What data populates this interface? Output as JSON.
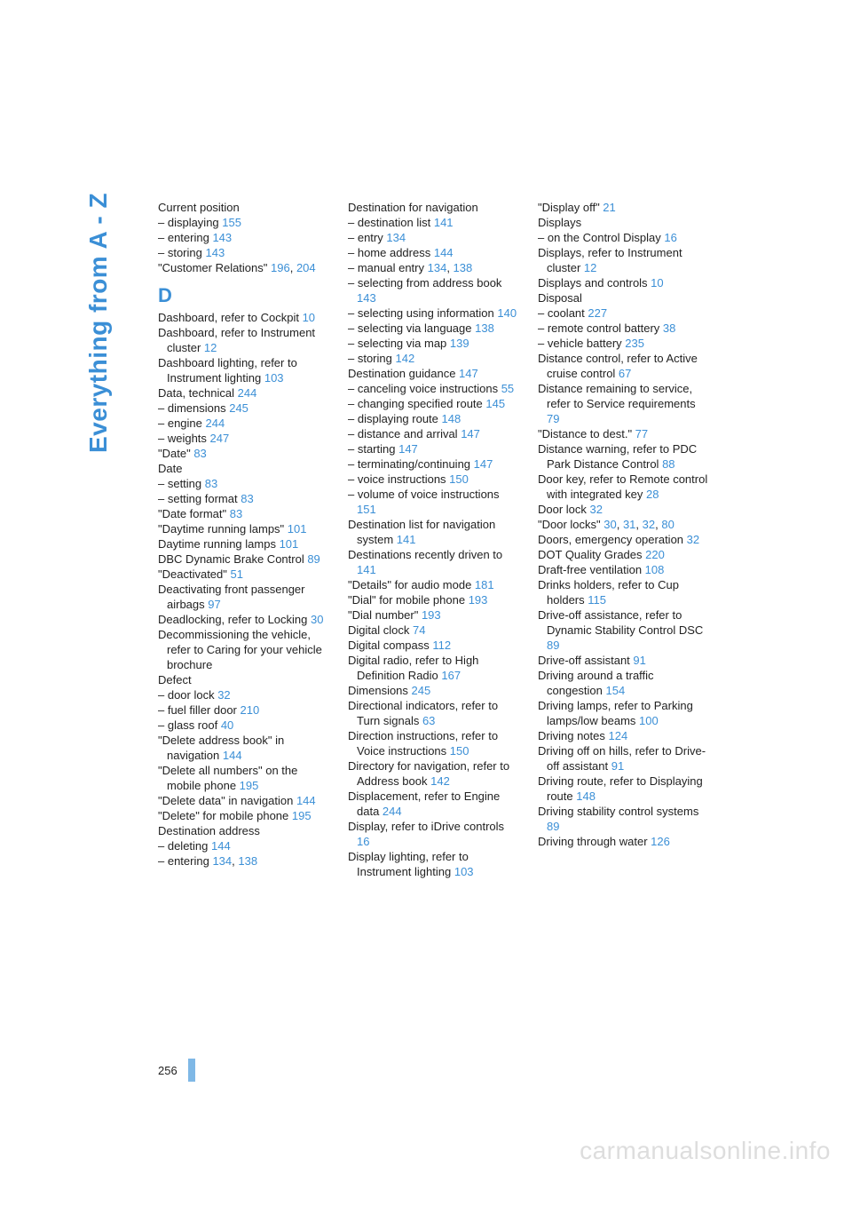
{
  "side_label": "Everything from A - Z",
  "page_number": "256",
  "watermark": "carmanualsonline.info",
  "link_color": "#3b8fd6",
  "text_color": "#222222",
  "columns": [
    [
      {
        "type": "entry",
        "main": "Current position",
        "subs": [
          {
            "t": "– displaying ",
            "r": "155"
          },
          {
            "t": "– entering ",
            "r": "143"
          },
          {
            "t": "– storing ",
            "r": "143"
          }
        ]
      },
      {
        "type": "entry",
        "main_parts": [
          {
            "t": "\"Customer Relations\" "
          },
          {
            "r": "196"
          },
          {
            "t": ", "
          },
          {
            "r": "204"
          }
        ]
      },
      {
        "type": "section",
        "label": "D"
      },
      {
        "type": "entry",
        "main_parts": [
          {
            "t": "Dashboard, refer to Cockpit "
          },
          {
            "r": "10"
          }
        ]
      },
      {
        "type": "entry",
        "main_parts": [
          {
            "t": "Dashboard, refer to Instrument cluster "
          },
          {
            "r": "12"
          }
        ]
      },
      {
        "type": "entry",
        "main_parts": [
          {
            "t": "Dashboard lighting, refer to Instrument lighting "
          },
          {
            "r": "103"
          }
        ]
      },
      {
        "type": "entry",
        "main_parts": [
          {
            "t": "Data, technical "
          },
          {
            "r": "244"
          }
        ],
        "subs": [
          {
            "t": "– dimensions ",
            "r": "245"
          },
          {
            "t": "– engine ",
            "r": "244"
          },
          {
            "t": "– weights ",
            "r": "247"
          }
        ]
      },
      {
        "type": "entry",
        "main_parts": [
          {
            "t": "\"Date\" "
          },
          {
            "r": "83"
          }
        ]
      },
      {
        "type": "entry",
        "main": "Date",
        "subs": [
          {
            "t": "– setting ",
            "r": "83"
          },
          {
            "t": "– setting format ",
            "r": "83"
          }
        ]
      },
      {
        "type": "entry",
        "main_parts": [
          {
            "t": "\"Date format\" "
          },
          {
            "r": "83"
          }
        ]
      },
      {
        "type": "entry",
        "main_parts": [
          {
            "t": "\"Daytime running lamps\" "
          },
          {
            "r": "101"
          }
        ]
      },
      {
        "type": "entry",
        "main_parts": [
          {
            "t": "Daytime running lamps "
          },
          {
            "r": "101"
          }
        ]
      },
      {
        "type": "entry",
        "main_parts": [
          {
            "t": "DBC Dynamic Brake Control "
          },
          {
            "r": "89"
          }
        ]
      },
      {
        "type": "entry",
        "main_parts": [
          {
            "t": "\"Deactivated\" "
          },
          {
            "r": "51"
          }
        ]
      },
      {
        "type": "entry",
        "main_parts": [
          {
            "t": "Deactivating front passenger airbags "
          },
          {
            "r": "97"
          }
        ]
      },
      {
        "type": "entry",
        "main_parts": [
          {
            "t": "Deadlocking, refer to Locking "
          },
          {
            "r": "30"
          }
        ]
      },
      {
        "type": "entry",
        "main": "Decommissioning the vehicle, refer to Caring for your vehicle brochure"
      },
      {
        "type": "entry",
        "main": "Defect",
        "subs": [
          {
            "t": "– door lock ",
            "r": "32"
          },
          {
            "t": "– fuel filler door ",
            "r": "210"
          },
          {
            "t": "– glass roof ",
            "r": "40"
          }
        ]
      },
      {
        "type": "entry",
        "main_parts": [
          {
            "t": "\"Delete address book\" in navigation "
          },
          {
            "r": "144"
          }
        ]
      },
      {
        "type": "entry",
        "main_parts": [
          {
            "t": "\"Delete all numbers\" on the mobile phone "
          },
          {
            "r": "195"
          }
        ]
      },
      {
        "type": "entry",
        "main_parts": [
          {
            "t": "\"Delete data\" in navigation "
          },
          {
            "r": "144"
          }
        ]
      },
      {
        "type": "entry",
        "main_parts": [
          {
            "t": "\"Delete\" for mobile phone "
          },
          {
            "r": "195"
          }
        ]
      }
    ],
    [
      {
        "type": "entry",
        "main": "Destination address",
        "subs": [
          {
            "t": "– deleting ",
            "r": "144"
          },
          {
            "parts": [
              {
                "t": "– entering "
              },
              {
                "r": "134"
              },
              {
                "t": ", "
              },
              {
                "r": "138"
              }
            ]
          }
        ]
      },
      {
        "type": "entry",
        "main": "Destination for navigation",
        "subs": [
          {
            "t": "– destination list ",
            "r": "141"
          },
          {
            "t": "– entry ",
            "r": "134"
          },
          {
            "t": "– home address ",
            "r": "144"
          },
          {
            "parts": [
              {
                "t": "– manual entry "
              },
              {
                "r": "134"
              },
              {
                "t": ", "
              },
              {
                "r": "138"
              }
            ]
          },
          {
            "t": "– selecting from address book ",
            "r": "143"
          },
          {
            "t": "– selecting using information ",
            "r": "140"
          },
          {
            "t": "– selecting via language ",
            "r": "138"
          },
          {
            "t": "– selecting via map ",
            "r": "139"
          },
          {
            "t": "– storing ",
            "r": "142"
          }
        ]
      },
      {
        "type": "entry",
        "main_parts": [
          {
            "t": "Destination guidance "
          },
          {
            "r": "147"
          }
        ],
        "subs": [
          {
            "t": "– canceling voice instructions ",
            "r": "55"
          },
          {
            "t": "– changing specified route ",
            "r": "145"
          },
          {
            "t": "– displaying route ",
            "r": "148"
          },
          {
            "t": "– distance and arrival ",
            "r": "147"
          },
          {
            "t": "– starting ",
            "r": "147"
          },
          {
            "t": "– terminating/continuing ",
            "r": "147"
          },
          {
            "t": "– voice instructions ",
            "r": "150"
          },
          {
            "t": "– volume of voice instructions ",
            "r": "151"
          }
        ]
      },
      {
        "type": "entry",
        "main_parts": [
          {
            "t": "Destination list for navigation system "
          },
          {
            "r": "141"
          }
        ]
      },
      {
        "type": "entry",
        "main_parts": [
          {
            "t": "Destinations recently driven to "
          },
          {
            "r": "141"
          }
        ]
      },
      {
        "type": "entry",
        "main_parts": [
          {
            "t": "\"Details\" for audio mode "
          },
          {
            "r": "181"
          }
        ]
      },
      {
        "type": "entry",
        "main_parts": [
          {
            "t": "\"Dial\" for mobile phone "
          },
          {
            "r": "193"
          }
        ]
      },
      {
        "type": "entry",
        "main_parts": [
          {
            "t": "\"Dial number\" "
          },
          {
            "r": "193"
          }
        ]
      },
      {
        "type": "entry",
        "main_parts": [
          {
            "t": "Digital clock "
          },
          {
            "r": "74"
          }
        ]
      },
      {
        "type": "entry",
        "main_parts": [
          {
            "t": "Digital compass "
          },
          {
            "r": "112"
          }
        ]
      },
      {
        "type": "entry",
        "main_parts": [
          {
            "t": "Digital radio, refer to High Definition Radio "
          },
          {
            "r": "167"
          }
        ]
      },
      {
        "type": "entry",
        "main_parts": [
          {
            "t": "Dimensions "
          },
          {
            "r": "245"
          }
        ]
      },
      {
        "type": "entry",
        "main_parts": [
          {
            "t": "Directional indicators, refer to Turn signals "
          },
          {
            "r": "63"
          }
        ]
      },
      {
        "type": "entry",
        "main_parts": [
          {
            "t": "Direction instructions, refer to Voice instructions "
          },
          {
            "r": "150"
          }
        ]
      },
      {
        "type": "entry",
        "main_parts": [
          {
            "t": "Directory for navigation, refer to Address book "
          },
          {
            "r": "142"
          }
        ]
      },
      {
        "type": "entry",
        "main_parts": [
          {
            "t": "Displacement, refer to Engine data "
          },
          {
            "r": "244"
          }
        ]
      },
      {
        "type": "entry",
        "main_parts": [
          {
            "t": "Display, refer to iDrive controls "
          },
          {
            "r": "16"
          }
        ]
      }
    ],
    [
      {
        "type": "entry",
        "main_parts": [
          {
            "t": "Display lighting, refer to Instrument lighting "
          },
          {
            "r": "103"
          }
        ]
      },
      {
        "type": "entry",
        "main_parts": [
          {
            "t": "\"Display off\" "
          },
          {
            "r": "21"
          }
        ]
      },
      {
        "type": "entry",
        "main": "Displays",
        "subs": [
          {
            "t": "– on the Control Display ",
            "r": "16"
          }
        ]
      },
      {
        "type": "entry",
        "main_parts": [
          {
            "t": "Displays, refer to Instrument cluster "
          },
          {
            "r": "12"
          }
        ]
      },
      {
        "type": "entry",
        "main_parts": [
          {
            "t": "Displays and controls "
          },
          {
            "r": "10"
          }
        ]
      },
      {
        "type": "entry",
        "main": "Disposal",
        "subs": [
          {
            "t": "– coolant ",
            "r": "227"
          },
          {
            "t": "– remote control battery ",
            "r": "38"
          },
          {
            "t": "– vehicle battery ",
            "r": "235"
          }
        ]
      },
      {
        "type": "entry",
        "main_parts": [
          {
            "t": "Distance control, refer to Active cruise control "
          },
          {
            "r": "67"
          }
        ]
      },
      {
        "type": "entry",
        "main_parts": [
          {
            "t": "Distance remaining to service, refer to Service requirements "
          },
          {
            "r": "79"
          }
        ]
      },
      {
        "type": "entry",
        "main_parts": [
          {
            "t": "\"Distance to dest.\" "
          },
          {
            "r": "77"
          }
        ]
      },
      {
        "type": "entry",
        "main_parts": [
          {
            "t": "Distance warning, refer to PDC Park Distance Control "
          },
          {
            "r": "88"
          }
        ]
      },
      {
        "type": "entry",
        "main_parts": [
          {
            "t": "Door key, refer to Remote control with integrated key "
          },
          {
            "r": "28"
          }
        ]
      },
      {
        "type": "entry",
        "main_parts": [
          {
            "t": "Door lock "
          },
          {
            "r": "32"
          }
        ]
      },
      {
        "type": "entry",
        "main_parts": [
          {
            "t": "\"Door locks\" "
          },
          {
            "r": "30"
          },
          {
            "t": ", "
          },
          {
            "r": "31"
          },
          {
            "t": ", "
          },
          {
            "r": "32"
          },
          {
            "t": ", "
          },
          {
            "r": "80"
          }
        ]
      },
      {
        "type": "entry",
        "main_parts": [
          {
            "t": "Doors, emergency operation "
          },
          {
            "r": "32"
          }
        ]
      },
      {
        "type": "entry",
        "main_parts": [
          {
            "t": "DOT Quality Grades "
          },
          {
            "r": "220"
          }
        ]
      },
      {
        "type": "entry",
        "main_parts": [
          {
            "t": "Draft-free ventilation "
          },
          {
            "r": "108"
          }
        ]
      },
      {
        "type": "entry",
        "main_parts": [
          {
            "t": "Drinks holders, refer to Cup holders "
          },
          {
            "r": "115"
          }
        ]
      },
      {
        "type": "entry",
        "main_parts": [
          {
            "t": "Drive-off assistance, refer to Dynamic Stability Control DSC "
          },
          {
            "r": "89"
          }
        ]
      },
      {
        "type": "entry",
        "main_parts": [
          {
            "t": "Drive-off assistant "
          },
          {
            "r": "91"
          }
        ]
      },
      {
        "type": "entry",
        "main_parts": [
          {
            "t": "Driving around a traffic congestion "
          },
          {
            "r": "154"
          }
        ]
      },
      {
        "type": "entry",
        "main_parts": [
          {
            "t": "Driving lamps, refer to Parking lamps/low beams "
          },
          {
            "r": "100"
          }
        ]
      },
      {
        "type": "entry",
        "main_parts": [
          {
            "t": "Driving notes "
          },
          {
            "r": "124"
          }
        ]
      },
      {
        "type": "entry",
        "main_parts": [
          {
            "t": "Driving off on hills, refer to Drive-off assistant "
          },
          {
            "r": "91"
          }
        ]
      },
      {
        "type": "entry",
        "main_parts": [
          {
            "t": "Driving route, refer to Displaying route "
          },
          {
            "r": "148"
          }
        ]
      },
      {
        "type": "entry",
        "main_parts": [
          {
            "t": "Driving stability control systems "
          },
          {
            "r": "89"
          }
        ]
      },
      {
        "type": "entry",
        "main_parts": [
          {
            "t": "Driving through water "
          },
          {
            "r": "126"
          }
        ]
      }
    ]
  ]
}
